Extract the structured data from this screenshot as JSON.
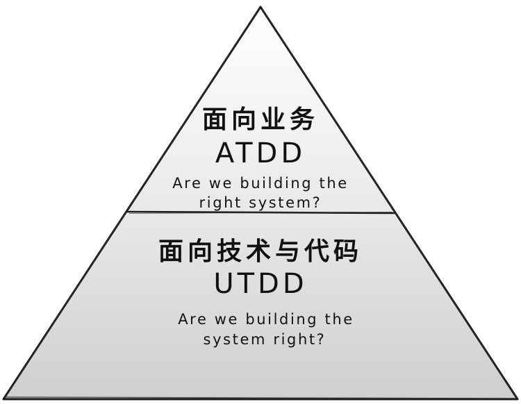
{
  "pyramid": {
    "top_tier": {
      "title": "面向业务",
      "acronym": "ATDD",
      "question_line1": "Are we building the",
      "question_line2": "right system?"
    },
    "bottom_tier": {
      "title": "面向技术与代码",
      "acronym": "UTDD",
      "question_line1": "Are we building the",
      "question_line2": "system right?"
    }
  }
}
